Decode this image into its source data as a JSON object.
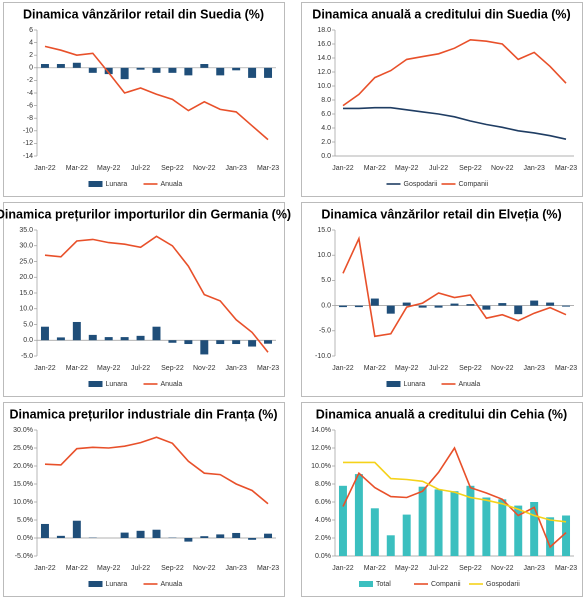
{
  "chart_data": [
    {
      "type": "combo",
      "title": "Dinamica vânzărilor retail din Suedia (%)",
      "categories": [
        "Jan-22",
        null,
        "Mar-22",
        null,
        "May-22",
        null,
        "Jul-22",
        null,
        "Sep-22",
        null,
        "Nov-22",
        null,
        "Jan-23",
        null,
        "Mar-23"
      ],
      "series": [
        {
          "name": "Lunara",
          "kind": "bar",
          "color": "#1f4e79",
          "values": [
            0.6,
            0.6,
            0.8,
            -0.8,
            -1.0,
            -1.8,
            -0.3,
            -0.8,
            -0.8,
            -1.2,
            0.6,
            -1.2,
            -0.4,
            -1.6,
            -1.6
          ]
        },
        {
          "name": "Anuala",
          "kind": "line",
          "color": "#e8502a",
          "values": [
            3.4,
            2.8,
            2.0,
            2.3,
            -0.8,
            -4.0,
            -3.2,
            -4.2,
            -5.0,
            -6.8,
            -5.4,
            -6.6,
            -7.0,
            -9.2,
            -11.4
          ]
        }
      ],
      "ylim": [
        -14,
        6
      ],
      "yticks": [
        -14,
        -12,
        -10,
        -8,
        -6,
        -4,
        -2,
        0,
        2,
        4,
        6
      ]
    },
    {
      "type": "line",
      "title": "Dinamica anuală a creditului din Suedia (%)",
      "categories": [
        "Jan-22",
        null,
        "Mar-22",
        null,
        "May-22",
        null,
        "Jul-22",
        null,
        "Sep-22",
        null,
        "Nov-22",
        null,
        "Jan-23",
        null,
        "Mar-23"
      ],
      "series": [
        {
          "name": "Gospodarii",
          "kind": "line",
          "color": "#1f3d63",
          "values": [
            6.8,
            6.8,
            6.9,
            6.9,
            6.6,
            6.3,
            6.0,
            5.6,
            5.0,
            4.5,
            4.1,
            3.6,
            3.3,
            2.9,
            2.4
          ]
        },
        {
          "name": "Companii",
          "kind": "line",
          "color": "#e8502a",
          "values": [
            7.2,
            8.8,
            11.2,
            12.2,
            13.8,
            14.2,
            14.6,
            15.4,
            16.6,
            16.4,
            16.0,
            13.8,
            14.8,
            12.8,
            10.4
          ]
        }
      ],
      "ylim": [
        0,
        18
      ],
      "yticks": [
        {
          "value": 0,
          "label": "0.0"
        },
        {
          "value": 2,
          "label": "2.0"
        },
        {
          "value": 4,
          "label": "4.0"
        },
        {
          "value": 6,
          "label": "6.0"
        },
        {
          "value": 8,
          "label": "8.0"
        },
        {
          "value": 10,
          "label": "10.0"
        },
        {
          "value": 12,
          "label": "12.0"
        },
        {
          "value": 14,
          "label": "14.0"
        },
        {
          "value": 16,
          "label": "16.0"
        },
        {
          "value": 18,
          "label": "18.0"
        }
      ]
    },
    {
      "type": "combo",
      "title": "Dinamica prețurilor importurilor din Germania (%)",
      "categories": [
        "Jan-22",
        null,
        "Mar-22",
        null,
        "May-22",
        null,
        "Jul-22",
        null,
        "Sep-22",
        null,
        "Nov-22",
        null,
        "Jan-23",
        null,
        "Mar-23"
      ],
      "series": [
        {
          "name": "Lunara",
          "kind": "bar",
          "color": "#1f4e79",
          "values": [
            4.3,
            0.9,
            5.8,
            1.7,
            1.0,
            1.0,
            1.4,
            4.3,
            -0.8,
            -1.2,
            -4.5,
            -1.2,
            -1.2,
            -2.0,
            -1.1
          ]
        },
        {
          "name": "Anuala",
          "kind": "line",
          "color": "#e8502a",
          "values": [
            27.0,
            26.5,
            31.5,
            32.0,
            31.0,
            30.5,
            29.5,
            33.0,
            30.0,
            23.5,
            14.5,
            12.5,
            6.5,
            2.5,
            -3.8
          ]
        }
      ],
      "ylim": [
        -5,
        35
      ],
      "yticks": [
        {
          "value": -5,
          "label": "-5.0"
        },
        {
          "value": 0,
          "label": "0.0"
        },
        {
          "value": 5,
          "label": "5.0"
        },
        {
          "value": 10,
          "label": "10.0"
        },
        {
          "value": 15,
          "label": "15.0"
        },
        {
          "value": 20,
          "label": "20.0"
        },
        {
          "value": 25,
          "label": "25.0"
        },
        {
          "value": 30,
          "label": "30.0"
        },
        {
          "value": 35,
          "label": "35.0"
        }
      ]
    },
    {
      "type": "combo",
      "title": "Dinamica vânzărilor retail din Elveția (%)",
      "categories": [
        "Jan-22",
        null,
        "Mar-22",
        null,
        "May-22",
        null,
        "Jul-22",
        null,
        "Sep-22",
        null,
        "Nov-22",
        null,
        "Jan-23",
        null,
        "Mar-23"
      ],
      "series": [
        {
          "name": "Lunara",
          "kind": "bar",
          "color": "#1f4e79",
          "values": [
            -0.3,
            -0.3,
            1.4,
            -1.6,
            0.6,
            -0.4,
            -0.4,
            0.4,
            0.3,
            -0.8,
            0.5,
            -1.7,
            1.0,
            0.6,
            -0.2
          ]
        },
        {
          "name": "Anuala",
          "kind": "line",
          "color": "#e8502a",
          "values": [
            6.4,
            13.3,
            -6.1,
            -5.6,
            -0.3,
            0.5,
            2.5,
            1.6,
            2.1,
            -2.5,
            -1.8,
            -3.0,
            -1.5,
            -0.4,
            -1.8
          ]
        }
      ],
      "ylim": [
        -10,
        15
      ],
      "yticks": [
        {
          "value": -10,
          "label": "-10.0"
        },
        {
          "value": -5,
          "label": "-5.0"
        },
        {
          "value": 0,
          "label": "0.0"
        },
        {
          "value": 5,
          "label": "5.0"
        },
        {
          "value": 10,
          "label": "10.0"
        },
        {
          "value": 15,
          "label": "15.0"
        }
      ]
    },
    {
      "type": "combo",
      "title": "Dinamica prețurilor industriale din Franța (%)",
      "categories": [
        "Jan-22",
        null,
        "Mar-22",
        null,
        "May-22",
        null,
        "Jul-22",
        null,
        "Sep-22",
        null,
        "Nov-22",
        null,
        "Jan-23",
        null,
        "Mar-23"
      ],
      "series": [
        {
          "name": "Lunara",
          "kind": "bar",
          "color": "#1f4e79",
          "values": [
            3.9,
            0.6,
            4.8,
            0.1,
            0.0,
            1.5,
            2.0,
            2.3,
            0.1,
            -1.0,
            0.5,
            1.0,
            1.4,
            -0.5,
            1.2
          ]
        },
        {
          "name": "Anuala",
          "kind": "line",
          "color": "#e8502a",
          "values": [
            20.5,
            20.3,
            24.8,
            25.2,
            25.0,
            25.5,
            26.5,
            28.0,
            26.3,
            21.3,
            18.0,
            17.6,
            15.0,
            13.2,
            9.5
          ]
        }
      ],
      "ylim": [
        -5,
        30
      ],
      "yticks": [
        {
          "value": -5,
          "label": "-5.0%"
        },
        {
          "value": 0,
          "label": "0.0%"
        },
        {
          "value": 5,
          "label": "5.0%"
        },
        {
          "value": 10,
          "label": "10.0%"
        },
        {
          "value": 15,
          "label": "15.0%"
        },
        {
          "value": 20,
          "label": "20.0%"
        },
        {
          "value": 25,
          "label": "25.0%"
        },
        {
          "value": 30,
          "label": "30.0%"
        }
      ]
    },
    {
      "type": "combo",
      "title": "Dinamica anuală a creditului din Cehia (%)",
      "categories": [
        "Jan-22",
        null,
        "Mar-22",
        null,
        "May-22",
        null,
        "Jul-22",
        null,
        "Sep-22",
        null,
        "Nov-22",
        null,
        "Jan-23",
        null,
        "Mar-23"
      ],
      "series": [
        {
          "name": "Total",
          "kind": "bar",
          "color": "#3bbfbf",
          "values": [
            7.8,
            9.1,
            5.3,
            2.3,
            4.6,
            7.7,
            7.4,
            7.2,
            7.8,
            6.5,
            6.3,
            5.6,
            6.0,
            4.3,
            4.5
          ]
        },
        {
          "name": "Companii",
          "kind": "line",
          "color": "#e8502a",
          "values": [
            5.5,
            9.2,
            7.6,
            6.6,
            6.5,
            7.2,
            9.3,
            12.0,
            7.6,
            7.0,
            6.3,
            4.5,
            5.4,
            1.0,
            2.6
          ]
        },
        {
          "name": "Gospodarii",
          "kind": "line",
          "color": "#f5d21a",
          "values": [
            10.4,
            10.4,
            10.4,
            8.6,
            8.5,
            8.3,
            7.4,
            7.1,
            6.5,
            6.2,
            5.8,
            5.2,
            4.5,
            4.0,
            3.8
          ]
        }
      ],
      "ylim": [
        0,
        14
      ],
      "yticks": [
        {
          "value": 0,
          "label": "0.0%"
        },
        {
          "value": 2,
          "label": "2.0%"
        },
        {
          "value": 4,
          "label": "4.0%"
        },
        {
          "value": 6,
          "label": "6.0%"
        },
        {
          "value": 8,
          "label": "8.0%"
        },
        {
          "value": 10,
          "label": "10.0%"
        },
        {
          "value": 12,
          "label": "12.0%"
        },
        {
          "value": 14,
          "label": "14.0%"
        }
      ]
    }
  ]
}
